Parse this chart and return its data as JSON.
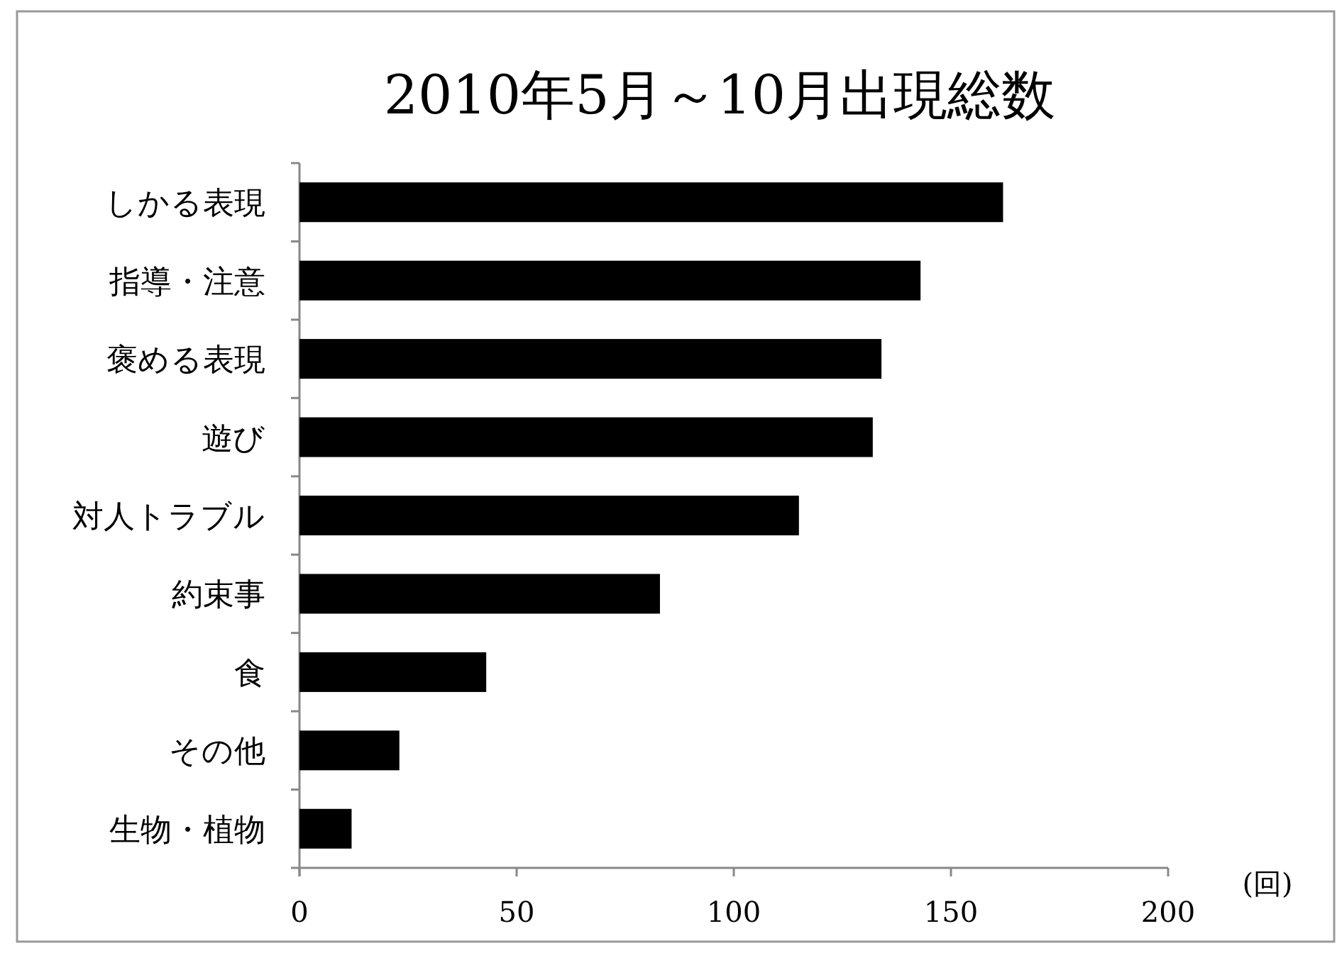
{
  "chart_data": {
    "type": "bar",
    "orientation": "horizontal",
    "title": "2010年5月～10月出現総数",
    "xlabel": "(回)",
    "categories": [
      "しかる表現",
      "指導・注意",
      "褒める表現",
      "遊び",
      "対人トラブル",
      "約束事",
      "食",
      "その他",
      "生物・植物"
    ],
    "values": [
      162,
      143,
      134,
      132,
      115,
      83,
      43,
      23,
      12
    ],
    "color": "#000000",
    "xlim": [
      0,
      200
    ],
    "xticks": [
      0,
      50,
      100,
      150,
      200
    ],
    "grid": false
  }
}
